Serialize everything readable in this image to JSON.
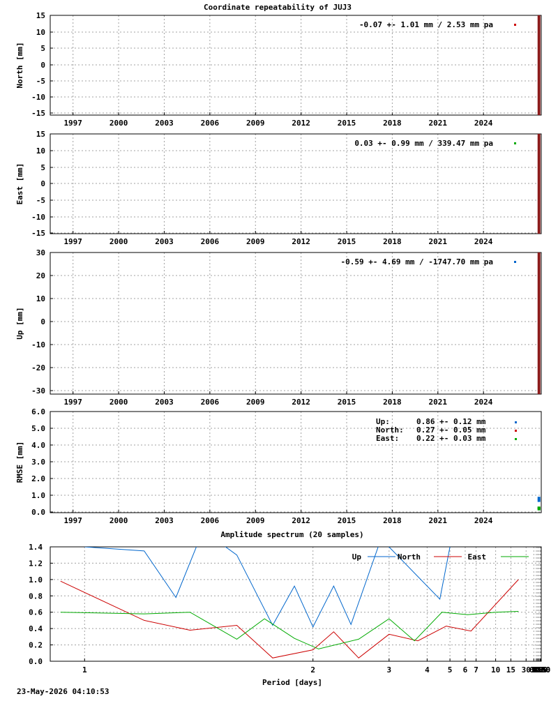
{
  "chart_data": [
    {
      "type": "scatter",
      "id": "north",
      "title": "Coordinate repeatability of JUJ3",
      "ylabel": "North [mm]",
      "xlim": [
        1995.5,
        2027.8
      ],
      "ylim": [
        -15.5,
        15
      ],
      "yticks": [
        15,
        10,
        5,
        0,
        -5,
        -10,
        -15
      ],
      "xticks": [
        1997,
        2000,
        2003,
        2006,
        2009,
        2012,
        2015,
        2018,
        2021,
        2024
      ],
      "annotation": "-0.07 +- 1.01 mm /  2.53 mm pa",
      "color": "#cc0000",
      "legend_marker": true,
      "series": [
        {
          "x": [
            2027.6,
            2027.65,
            2027.7
          ],
          "y": [
            -15.5,
            0,
            15
          ]
        }
      ]
    },
    {
      "type": "scatter",
      "id": "east",
      "ylabel": "East [mm]",
      "xlim": [
        1995.5,
        2027.8
      ],
      "ylim": [
        -15.5,
        15.5
      ],
      "yticks": [
        15,
        10,
        5,
        0,
        -5,
        -10,
        -15
      ],
      "xticks": [
        1997,
        2000,
        2003,
        2006,
        2009,
        2012,
        2015,
        2018,
        2021,
        2024
      ],
      "annotation": "0.03 +- 0.99 mm / 339.47 mm pa",
      "color": "#00aa00",
      "legend_marker": true,
      "series": [
        {
          "x": [
            2027.6,
            2027.65,
            2027.7
          ],
          "y": [
            -15.5,
            0,
            15.5
          ]
        }
      ]
    },
    {
      "type": "scatter",
      "id": "up",
      "ylabel": "Up [mm]",
      "xlim": [
        1995.5,
        2027.8
      ],
      "ylim": [
        -31,
        30
      ],
      "yticks": [
        30,
        20,
        10,
        0,
        -10,
        -20,
        -30
      ],
      "xticks": [
        1997,
        2000,
        2003,
        2006,
        2009,
        2012,
        2015,
        2018,
        2021,
        2024
      ],
      "annotation": "-0.59 +- 4.69 mm / -1747.70 mm pa",
      "color": "#0066cc",
      "legend_marker": true,
      "series": [
        {
          "x": [
            2027.6,
            2027.65,
            2027.7
          ],
          "y": [
            -31,
            0,
            30
          ]
        }
      ]
    },
    {
      "type": "scatter",
      "id": "rmse",
      "ylabel": "RMSE [mm]",
      "xlim": [
        1995.5,
        2027.8
      ],
      "ylim": [
        0,
        6
      ],
      "yticks": [
        "6.0",
        "5.0",
        "4.0",
        "3.0",
        "2.0",
        "1.0",
        "0.0"
      ],
      "xticks": [
        1997,
        2000,
        2003,
        2006,
        2009,
        2012,
        2015,
        2018,
        2021,
        2024
      ],
      "legend": [
        {
          "label": "Up:",
          "text": "0.86 +- 0.12 mm",
          "color": "#0066cc"
        },
        {
          "label": "North:",
          "text": "0.27 +- 0.05 mm",
          "color": "#cc0000"
        },
        {
          "label": "East:",
          "text": "0.22 +- 0.03 mm",
          "color": "#00aa00"
        }
      ],
      "series": [
        {
          "name": "Up",
          "color": "#0066cc",
          "x": [
            2027.65,
            2027.65
          ],
          "y": [
            0.86,
            0.72
          ]
        },
        {
          "name": "North",
          "color": "#cc0000",
          "x": [
            2027.65
          ],
          "y": [
            0.27
          ]
        },
        {
          "name": "East",
          "color": "#00aa00",
          "x": [
            2027.65,
            2027.65
          ],
          "y": [
            0.22,
            0.28
          ]
        }
      ]
    },
    {
      "type": "line",
      "id": "spectrum",
      "title": "Amplitude spectrum (20 samples)",
      "xlabel": "Period [days]",
      "xscale": "reciprocal",
      "xlim_days": [
        0.93,
        8760
      ],
      "ylim": [
        0,
        1.4
      ],
      "yticks": [
        "1.4",
        "1.2",
        "1.0",
        "0.8",
        "0.6",
        "0.4",
        "0.2",
        "0.0"
      ],
      "xticks": [
        "1",
        "2",
        "3",
        "4",
        "5",
        "6",
        "7",
        "10",
        "15",
        "30",
        "61",
        "91",
        "122",
        "183",
        "365",
        "730",
        "2190",
        "4380",
        "8760"
      ],
      "xtick_values": [
        1,
        2,
        3,
        4,
        5,
        6,
        7,
        10,
        15,
        30,
        61,
        91,
        122,
        183,
        365,
        730,
        2190,
        4380,
        8760
      ],
      "series": [
        {
          "name": "Up",
          "color": "#0066cc",
          "x": [
            1.0,
            1.15,
            1.25,
            1.35,
            1.5,
            1.7,
            1.85,
            2.0,
            2.2,
            2.4,
            2.85,
            4.5,
            5.0
          ],
          "y": [
            1.4,
            1.35,
            0.78,
            1.6,
            1.3,
            0.44,
            0.92,
            0.42,
            0.92,
            0.45,
            1.5,
            0.76,
            1.4
          ]
        },
        {
          "name": "North",
          "color": "#cc0000",
          "x": [
            0.95,
            1.15,
            1.3,
            1.5,
            1.7,
            2.0,
            2.2,
            2.5,
            3.0,
            3.7,
            4.8,
            6.5,
            20.0
          ],
          "y": [
            0.98,
            0.5,
            0.38,
            0.44,
            0.04,
            0.14,
            0.36,
            0.04,
            0.33,
            0.25,
            0.43,
            0.37,
            1.0
          ]
        },
        {
          "name": "East",
          "color": "#00aa00",
          "x": [
            0.95,
            1.15,
            1.3,
            1.5,
            1.65,
            1.85,
            2.05,
            2.5,
            3.0,
            3.6,
            4.6,
            6.2,
            10.0,
            20.0
          ],
          "y": [
            0.6,
            0.58,
            0.6,
            0.27,
            0.52,
            0.28,
            0.15,
            0.27,
            0.52,
            0.25,
            0.6,
            0.57,
            0.6,
            0.61
          ]
        }
      ]
    }
  ],
  "timestamp": "23-May-2026 04:10:53"
}
